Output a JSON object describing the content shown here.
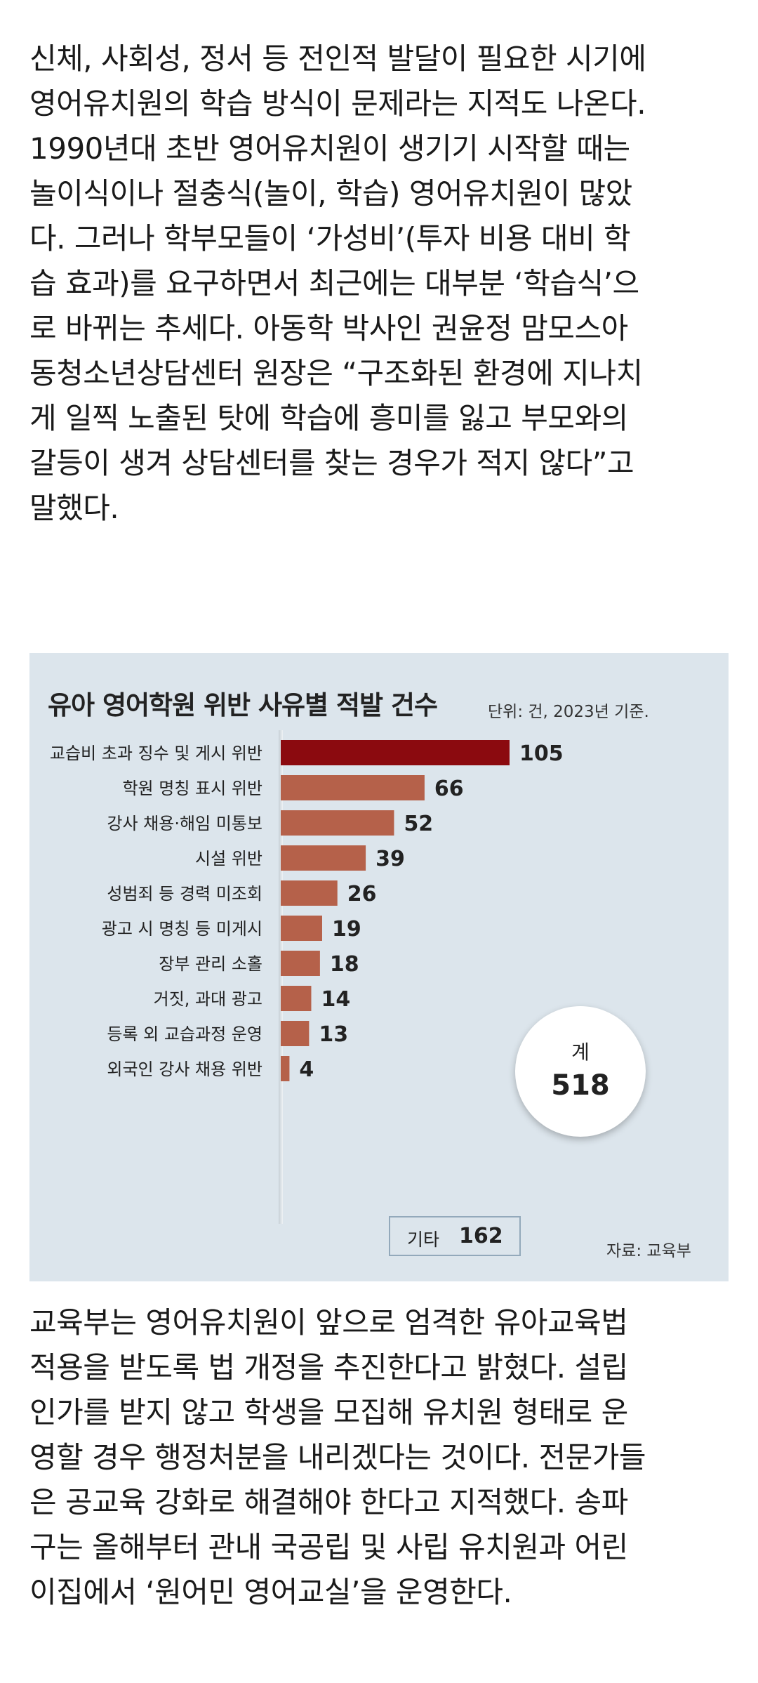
{
  "article": {
    "para1_lines": [
      "신체, 사회성, 정서 등 전인적 발달이 필요한 시기에",
      "영어유치원의 학습 방식이 문제라는 지적도 나온다.",
      "1990년대 초반 영어유치원이 생기기 시작할 때는",
      "놀이식이나 절충식(놀이, 학습) 영어유치원이 많았",
      "다. 그러나 학부모들이 ‘가성비’(투자 비용 대비 학",
      "습 효과)를 요구하면서 최근에는 대부분 ‘학습식’으",
      "로 바뀌는 추세다. 아동학 박사인 권윤정 맘모스아",
      "동청소년상담센터 원장은 “구조화된 환경에 지나치",
      "게 일찍 노출된 탓에 학습에 흥미를 잃고 부모와의",
      "갈등이 생겨 상담센터를 찾는 경우가 적지 않다”고",
      "말했다."
    ],
    "para2_lines": [
      "교육부는 영어유치원이 앞으로 엄격한 유아교육법",
      "적용을 받도록 법 개정을 추진한다고 밝혔다. 설립",
      "인가를 받지 않고 학생을 모집해 유치원 형태로 운",
      "영할 경우 행정처분을 내리겠다는 것이다. 전문가들",
      "은 공교육 강화로 해결해야 한다고 지적했다. 송파",
      "구는 올해부터 관내 국공립 및 사립 유치원과 어린",
      "이집에서 ‘원어민 영어교실’을 운영한다."
    ]
  },
  "chart_data": {
    "type": "bar",
    "orientation": "horizontal",
    "title": "유아 영어학원 위반 사유별 적발 건수",
    "unit_note": "단위: 건, 2023년 기준.",
    "source": "자료: 교육부",
    "categories": [
      "교습비 초과 징수 및 게시 위반",
      "학원 명칭 표시 위반",
      "강사 채용·해임 미통보",
      "시설 위반",
      "성범죄 등 경력 미조회",
      "광고 시 명칭 등 미게시",
      "장부 관리 소홀",
      "거짓, 과대 광고",
      "등록 외  교습과정 운영",
      "외국인 강사 채용 위반"
    ],
    "values": [
      105,
      66,
      52,
      39,
      26,
      19,
      18,
      14,
      13,
      4
    ],
    "colors": {
      "highlight": "#8b0a0f",
      "bar": "#b5614a",
      "background": "#dce5ec"
    },
    "total": {
      "label": "계",
      "value": "518"
    },
    "other": {
      "label": "기타",
      "value": "162"
    }
  }
}
